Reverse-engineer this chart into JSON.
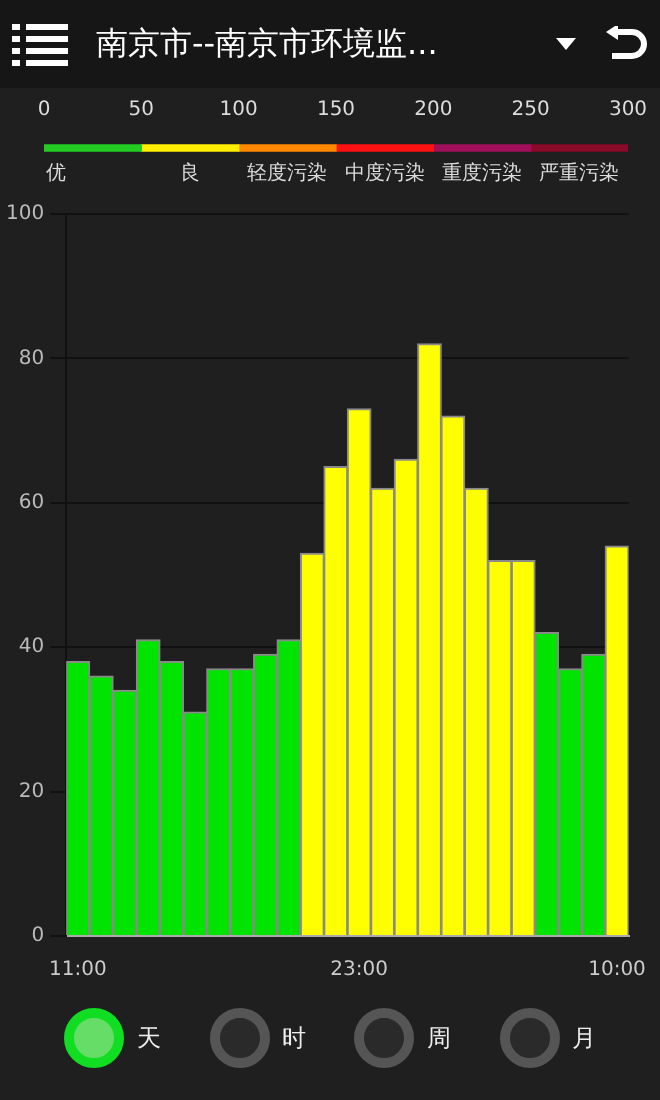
{
  "chart_data": [
    {
      "type": "bar",
      "orientation": "horizontal",
      "stacked": true,
      "title": "南京市--南京市环境监...",
      "categories": [
        null
      ],
      "xlim": [
        0,
        300
      ],
      "xticks": [
        0,
        50,
        100,
        150,
        200,
        250,
        300
      ],
      "series": [
        {
          "name": "优",
          "color": "#22cc22",
          "values": [
            50
          ]
        },
        {
          "name": "良",
          "color": "#ffee00",
          "values": [
            50
          ]
        },
        {
          "name": "轻度污染",
          "color": "#ff8800",
          "values": [
            50
          ]
        },
        {
          "name": "中度污染",
          "color": "#ff1111",
          "values": [
            50
          ]
        },
        {
          "name": "重度污染",
          "color": "#a0105a",
          "values": [
            50
          ]
        },
        {
          "name": "严重污染",
          "color": "#8a0a28",
          "values": [
            50
          ]
        }
      ]
    },
    {
      "type": "bar",
      "categories": [
        "11:00",
        null,
        null,
        null,
        null,
        null,
        null,
        null,
        null,
        null,
        null,
        null,
        "23:00",
        null,
        null,
        null,
        null,
        null,
        null,
        null,
        null,
        null,
        null,
        "10:00"
      ],
      "values": [
        38,
        36,
        34,
        41,
        38,
        31,
        37,
        37,
        39,
        41,
        53,
        65,
        73,
        62,
        66,
        82,
        72,
        62,
        52,
        52,
        42,
        37,
        39,
        54
      ],
      "colors": [
        "#00e400",
        "#00e400",
        "#00e400",
        "#00e400",
        "#00e400",
        "#00e400",
        "#00e400",
        "#00e400",
        "#00e400",
        "#00e400",
        "#ffff00",
        "#ffff00",
        "#ffff00",
        "#ffff00",
        "#ffff00",
        "#ffff00",
        "#ffff00",
        "#ffff00",
        "#ffff00",
        "#ffff00",
        "#00e400",
        "#00e400",
        "#00e400",
        "#ffff00"
      ],
      "ylim": [
        0,
        100
      ],
      "yticks": [
        0,
        20,
        40,
        60,
        80,
        100
      ],
      "grid": "y",
      "annotations": [
        "天",
        "时",
        "周",
        "月"
      ]
    }
  ]
}
